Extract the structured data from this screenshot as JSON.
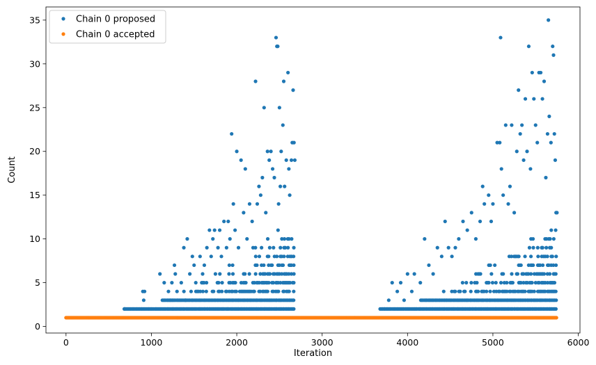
{
  "chart_data": {
    "type": "scatter",
    "title": "",
    "xlabel": "Iteration",
    "ylabel": "Count",
    "xlim": [
      -235,
      6020
    ],
    "ylim": [
      -0.75,
      36.5
    ],
    "xticks": [
      0,
      1000,
      2000,
      3000,
      4000,
      5000,
      6000
    ],
    "yticks": [
      0,
      5,
      10,
      15,
      20,
      25,
      30,
      35
    ],
    "grid": false,
    "legend": {
      "position": "top-left"
    },
    "x_range": [
      0,
      5750
    ],
    "active_segments": [
      [
        680,
        2680
      ],
      [
        3680,
        5750
      ]
    ],
    "series": [
      {
        "name": "Chain 0 proposed",
        "color": "#1f77b4",
        "points": [
          [
            690,
            2
          ],
          [
            900,
            4
          ],
          [
            920,
            4
          ],
          [
            910,
            3
          ],
          [
            1100,
            6
          ],
          [
            1150,
            5
          ],
          [
            1200,
            4
          ],
          [
            1220,
            3
          ],
          [
            1240,
            5
          ],
          [
            1270,
            7
          ],
          [
            1280,
            6
          ],
          [
            1300,
            4
          ],
          [
            1350,
            5
          ],
          [
            1380,
            9
          ],
          [
            1400,
            3
          ],
          [
            1420,
            10
          ],
          [
            1450,
            6
          ],
          [
            1480,
            8
          ],
          [
            1500,
            7
          ],
          [
            1520,
            5
          ],
          [
            1550,
            4
          ],
          [
            1570,
            8
          ],
          [
            1600,
            6
          ],
          [
            1620,
            7
          ],
          [
            1650,
            9
          ],
          [
            1680,
            11
          ],
          [
            1700,
            8
          ],
          [
            1720,
            10
          ],
          [
            1740,
            11
          ],
          [
            1750,
            6
          ],
          [
            1780,
            9
          ],
          [
            1800,
            11
          ],
          [
            1820,
            8
          ],
          [
            1850,
            12
          ],
          [
            1880,
            9
          ],
          [
            1900,
            12
          ],
          [
            1920,
            10
          ],
          [
            1940,
            22
          ],
          [
            1960,
            14
          ],
          [
            1980,
            11
          ],
          [
            2000,
            20
          ],
          [
            2020,
            9
          ],
          [
            2050,
            19
          ],
          [
            2080,
            13
          ],
          [
            2100,
            18
          ],
          [
            2120,
            10
          ],
          [
            2150,
            14
          ],
          [
            2180,
            12
          ],
          [
            2220,
            28
          ],
          [
            2240,
            14
          ],
          [
            2260,
            16
          ],
          [
            2280,
            15
          ],
          [
            2300,
            17
          ],
          [
            2320,
            25
          ],
          [
            2340,
            13
          ],
          [
            2360,
            20
          ],
          [
            2380,
            19
          ],
          [
            2400,
            20
          ],
          [
            2420,
            18
          ],
          [
            2440,
            17
          ],
          [
            2460,
            33
          ],
          [
            2470,
            32
          ],
          [
            2480,
            32
          ],
          [
            2490,
            14
          ],
          [
            2500,
            25
          ],
          [
            2510,
            16
          ],
          [
            2520,
            20
          ],
          [
            2540,
            23
          ],
          [
            2550,
            28
          ],
          [
            2560,
            16
          ],
          [
            2580,
            19
          ],
          [
            2600,
            29
          ],
          [
            2610,
            18
          ],
          [
            2620,
            15
          ],
          [
            2640,
            19
          ],
          [
            2650,
            21
          ],
          [
            2660,
            27
          ],
          [
            2670,
            21
          ],
          [
            2680,
            19
          ],
          [
            3780,
            3
          ],
          [
            3820,
            5
          ],
          [
            3880,
            4
          ],
          [
            3920,
            5
          ],
          [
            3960,
            3
          ],
          [
            4000,
            6
          ],
          [
            4050,
            4
          ],
          [
            4080,
            6
          ],
          [
            4150,
            5
          ],
          [
            4200,
            10
          ],
          [
            4250,
            7
          ],
          [
            4300,
            6
          ],
          [
            4350,
            9
          ],
          [
            4400,
            8
          ],
          [
            4440,
            12
          ],
          [
            4480,
            9
          ],
          [
            4520,
            8
          ],
          [
            4560,
            9
          ],
          [
            4600,
            10
          ],
          [
            4650,
            12
          ],
          [
            4700,
            11
          ],
          [
            4750,
            13
          ],
          [
            4800,
            10
          ],
          [
            4850,
            12
          ],
          [
            4880,
            16
          ],
          [
            4900,
            14
          ],
          [
            4950,
            15
          ],
          [
            4980,
            12
          ],
          [
            5000,
            14
          ],
          [
            5050,
            21
          ],
          [
            5080,
            21
          ],
          [
            5090,
            33
          ],
          [
            5100,
            18
          ],
          [
            5120,
            15
          ],
          [
            5150,
            23
          ],
          [
            5180,
            14
          ],
          [
            5200,
            16
          ],
          [
            5220,
            23
          ],
          [
            5250,
            13
          ],
          [
            5280,
            20
          ],
          [
            5300,
            27
          ],
          [
            5320,
            22
          ],
          [
            5340,
            23
          ],
          [
            5360,
            19
          ],
          [
            5380,
            26
          ],
          [
            5400,
            20
          ],
          [
            5420,
            32
          ],
          [
            5440,
            18
          ],
          [
            5460,
            29
          ],
          [
            5480,
            26
          ],
          [
            5500,
            23
          ],
          [
            5520,
            21
          ],
          [
            5540,
            29
          ],
          [
            5560,
            29
          ],
          [
            5580,
            26
          ],
          [
            5600,
            28
          ],
          [
            5620,
            17
          ],
          [
            5640,
            22
          ],
          [
            5650,
            35
          ],
          [
            5660,
            24
          ],
          [
            5680,
            21
          ],
          [
            5700,
            32
          ],
          [
            5710,
            31
          ],
          [
            5720,
            22
          ],
          [
            5730,
            19
          ],
          [
            5740,
            13
          ],
          [
            5750,
            13
          ]
        ]
      },
      {
        "name": "Chain 0 accepted",
        "color": "#ff7f0e",
        "points": []
      }
    ]
  }
}
